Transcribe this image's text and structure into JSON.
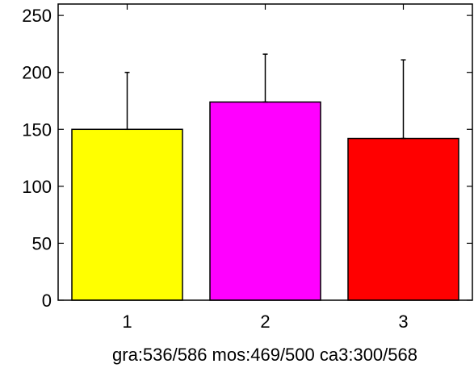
{
  "chart_data": {
    "type": "bar",
    "categories": [
      "1",
      "2",
      "3"
    ],
    "values": [
      150,
      174,
      142
    ],
    "error_upper": [
      200,
      216,
      211
    ],
    "colors": [
      "#ffff00",
      "#ff00ff",
      "#ff0000"
    ],
    "xlabel": "gra:536/586 mos:469/500 ca3:300/568",
    "ylabel": "",
    "ylim": [
      0,
      260
    ],
    "yticks": [
      0,
      50,
      100,
      150,
      200,
      250
    ],
    "grid": false,
    "legend": "none"
  }
}
